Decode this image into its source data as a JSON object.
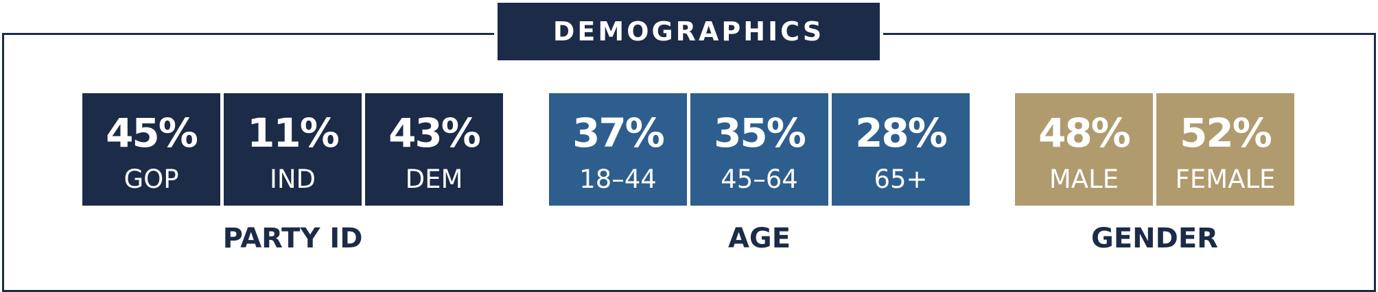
{
  "title": "DEMOGRAPHICS",
  "groups": [
    {
      "label": "PARTY ID",
      "color": "#1b2b48",
      "items": [
        {
          "value": "45%",
          "label": "GOP"
        },
        {
          "value": "11%",
          "label": "IND"
        },
        {
          "value": "43%",
          "label": "DEM"
        }
      ]
    },
    {
      "label": "AGE",
      "color": "#2e5e8e",
      "items": [
        {
          "value": "37%",
          "label": "18–44"
        },
        {
          "value": "35%",
          "label": "45–64"
        },
        {
          "value": "28%",
          "label": "65+"
        }
      ]
    },
    {
      "label": "GENDER",
      "color": "#b09b6f",
      "items": [
        {
          "value": "48%",
          "label": "MALE"
        },
        {
          "value": "52%",
          "label": "FEMALE"
        }
      ]
    }
  ]
}
